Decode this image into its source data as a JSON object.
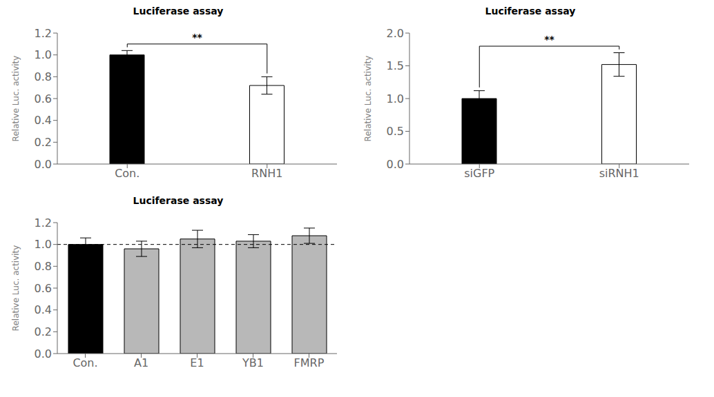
{
  "chart_data": [
    {
      "type": "bar",
      "title": "Luciferase assay",
      "categories": [
        "Con.",
        "RNH1"
      ],
      "values": [
        1.0,
        0.72
      ],
      "errors": [
        0.04,
        0.08
      ],
      "colors": [
        "black",
        "white"
      ],
      "ylabel": "Relative Luc. activity",
      "ylim": [
        0,
        1.2
      ],
      "yticks": [
        {
          "value": 0,
          "label": "0.0"
        },
        0.2,
        0.4,
        0.6,
        0.8,
        {
          "value": 1.0,
          "label": "1.0"
        },
        1.2
      ],
      "grid": false,
      "annotations": [
        "**"
      ]
    },
    {
      "type": "bar",
      "title": "Luciferase assay",
      "categories": [
        "siGFP",
        "siRNH1"
      ],
      "values": [
        1.0,
        1.52
      ],
      "errors": [
        0.12,
        0.18
      ],
      "colors": [
        "black",
        "white"
      ],
      "ylabel": "Relative Luc. activity",
      "ylim": [
        0,
        2.0
      ],
      "yticks": [
        {
          "value": 0,
          "label": "0.0"
        },
        0.5,
        {
          "value": 1.0,
          "label": "1.0"
        },
        1.5,
        {
          "value": 2.0,
          "label": "2.0"
        }
      ],
      "grid": false,
      "annotations": [
        "**"
      ]
    },
    {
      "type": "bar",
      "title": "Luciferase assay",
      "categories": [
        "Con.",
        "A1",
        "E1",
        "YB1",
        "FMRP"
      ],
      "values": [
        1.0,
        0.96,
        1.05,
        1.03,
        1.08
      ],
      "errors": [
        0.06,
        0.07,
        0.08,
        0.06,
        0.07
      ],
      "colors": [
        "black",
        "#b8b8b8",
        "#b8b8b8",
        "#b8b8b8",
        "#b8b8b8"
      ],
      "ylabel": "Relative Luc. activity",
      "ylim": [
        0,
        1.2
      ],
      "yticks": [
        {
          "value": 0,
          "label": "0.0"
        },
        0.2,
        0.4,
        0.6,
        0.8,
        {
          "value": 1.0,
          "label": "1.0"
        },
        1.2
      ],
      "grid": false,
      "dashed_line": 1.0
    }
  ]
}
